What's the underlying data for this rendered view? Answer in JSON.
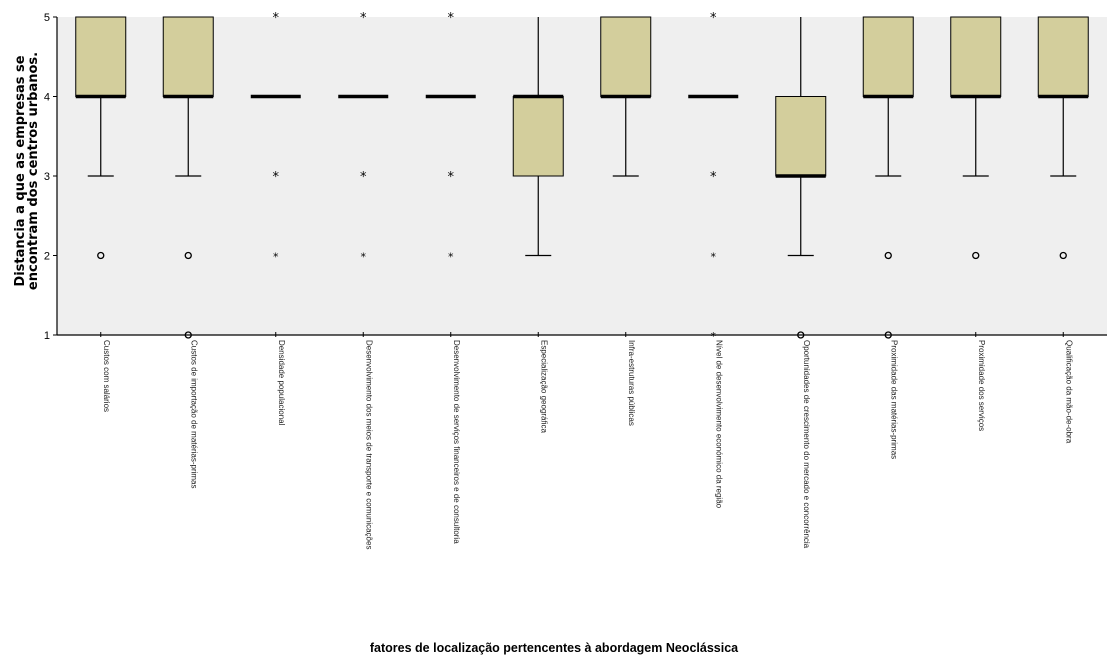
{
  "chart_data": {
    "type": "boxplot",
    "ylabel": "Distancia a que as empresas se encontram dos centros urbanos.",
    "xlabel": "fatores de localização pertencentes à abordagem Neoclássica",
    "ylim": [
      1,
      5
    ],
    "yticks": [
      1,
      2,
      3,
      4,
      5
    ],
    "grid": false,
    "plot_background": "#efefef",
    "box_color": "#d3ce9c",
    "categories": [
      "Custos com salários",
      "Custos de importação de matérias-primas",
      "Densidade populacional",
      "Desenvolvimento dos meios de transporte e comunicações",
      "Desenvolvimento de serviços financeiros e de consultoria",
      "Especialização geográfica",
      "Infra-estruturas públicas",
      "Nível de desenvolvimento económico da região",
      "Oportunidades de crescimento do mercado e concorrência",
      "Proximidade das matérias-primas",
      "Proximidade dos serviços",
      "Qualificação da mão-de-obra"
    ],
    "boxes": [
      {
        "whisker_low": 3,
        "q1": 4,
        "median": 4,
        "q3": 5,
        "whisker_high": 5,
        "outliers": [
          2
        ],
        "extremes": [],
        "low_marks": [
          1
        ]
      },
      {
        "whisker_low": 3,
        "q1": 4,
        "median": 4,
        "q3": 5,
        "whisker_high": 5,
        "outliers": [
          2,
          1
        ],
        "extremes": [],
        "low_marks": []
      },
      {
        "whisker_low": 4,
        "q1": 4,
        "median": 4,
        "q3": 4,
        "whisker_high": 4,
        "outliers": [],
        "extremes": [
          5,
          3,
          2
        ],
        "low_marks": [
          1
        ]
      },
      {
        "whisker_low": 4,
        "q1": 4,
        "median": 4,
        "q3": 4,
        "whisker_high": 4,
        "outliers": [],
        "extremes": [
          5,
          3,
          2
        ],
        "low_marks": [
          1
        ]
      },
      {
        "whisker_low": 4,
        "q1": 4,
        "median": 4,
        "q3": 4,
        "whisker_high": 4,
        "outliers": [],
        "extremes": [
          5,
          3,
          2
        ],
        "low_marks": [
          1
        ]
      },
      {
        "whisker_low": 2,
        "q1": 3,
        "median": 4,
        "q3": 4,
        "whisker_high": 5,
        "outliers": [],
        "extremes": [],
        "low_marks": [
          1
        ]
      },
      {
        "whisker_low": 3,
        "q1": 4,
        "median": 4,
        "q3": 5,
        "whisker_high": 5,
        "outliers": [],
        "extremes": [],
        "low_marks": [
          1
        ]
      },
      {
        "whisker_low": 4,
        "q1": 4,
        "median": 4,
        "q3": 4,
        "whisker_high": 4,
        "outliers": [],
        "extremes": [
          5,
          3,
          2,
          1
        ],
        "low_marks": []
      },
      {
        "whisker_low": 2,
        "q1": 3,
        "median": 3,
        "q3": 4,
        "whisker_high": 5,
        "outliers": [
          1
        ],
        "extremes": [],
        "low_marks": []
      },
      {
        "whisker_low": 3,
        "q1": 4,
        "median": 4,
        "q3": 5,
        "whisker_high": 5,
        "outliers": [
          2,
          1
        ],
        "extremes": [],
        "low_marks": []
      },
      {
        "whisker_low": 3,
        "q1": 4,
        "median": 4,
        "q3": 5,
        "whisker_high": 5,
        "outliers": [
          2
        ],
        "extremes": [],
        "low_marks": [
          1
        ]
      },
      {
        "whisker_low": 3,
        "q1": 4,
        "median": 4,
        "q3": 5,
        "whisker_high": 5,
        "outliers": [
          2
        ],
        "extremes": [],
        "low_marks": [
          1
        ]
      }
    ]
  }
}
